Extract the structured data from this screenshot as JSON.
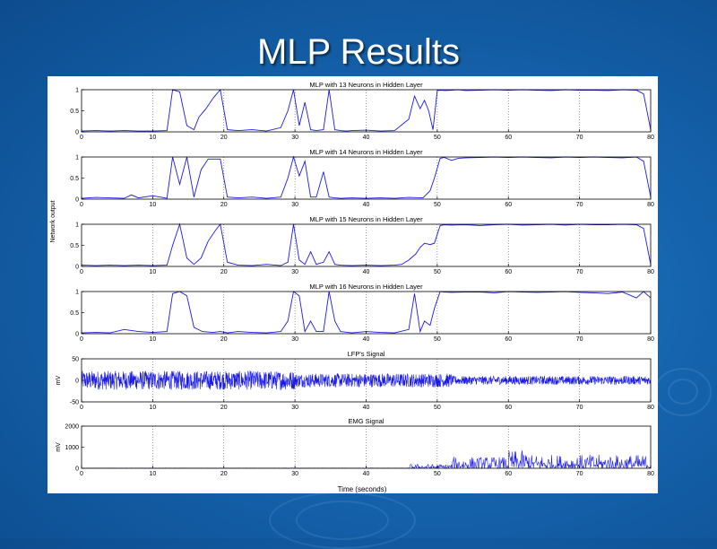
{
  "slide": {
    "title": "MLP Results"
  },
  "figure": {
    "xlabel": "Time (seconds)",
    "shared_ylabel": "Network output",
    "colors": {
      "trace": "#1a1ae6",
      "axis": "#000000",
      "grid": "#555555"
    }
  },
  "chart_data": [
    {
      "type": "line",
      "title": "MLP with 13 Neurons in Hidden Layer",
      "xlabel": "",
      "ylabel": "",
      "xlim": [
        0,
        80
      ],
      "ylim": [
        0,
        1
      ],
      "xticks": [
        0,
        10,
        20,
        30,
        40,
        50,
        60,
        70,
        80
      ],
      "yticks": [
        0,
        0.5,
        1
      ],
      "grid": "vertical dotted",
      "series": [
        {
          "x": [
            0,
            2,
            4,
            6,
            8,
            10,
            12,
            12.8,
            13.8,
            14.8,
            15.8,
            16.5,
            17.5,
            18.5,
            19.5,
            20.5,
            22,
            24,
            26,
            28,
            29,
            29.8,
            30.6,
            31.4,
            32.2,
            33,
            34,
            34.8,
            35.6,
            36.4,
            37.2,
            38,
            40,
            42,
            44,
            46,
            46.8,
            47.6,
            48.2,
            48.8,
            49.4,
            50,
            50.6,
            51.2,
            52,
            53,
            54,
            56,
            58,
            60,
            62,
            64,
            66,
            68,
            70,
            72,
            74,
            76,
            78,
            79,
            80
          ],
          "y": [
            0.02,
            0.03,
            0.02,
            0.03,
            0.02,
            0.02,
            0.03,
            1,
            0.95,
            0.15,
            0.05,
            0.35,
            0.55,
            0.8,
            1,
            0.05,
            0.03,
            0.05,
            0.02,
            0.1,
            0.5,
            1,
            0.15,
            0.7,
            0.05,
            0.03,
            0.05,
            1,
            0.05,
            0.03,
            0.02,
            0.03,
            0.04,
            0.02,
            0.03,
            0.3,
            0.85,
            0.55,
            0.75,
            0.5,
            0.05,
            0.98,
            0.99,
            0.98,
            0.99,
            1,
            0.98,
            0.99,
            1,
            0.99,
            1,
            0.99,
            0.98,
            1,
            0.99,
            0.99,
            0.98,
            1,
            0.99,
            0.9,
            0.05
          ]
        }
      ]
    },
    {
      "type": "line",
      "title": "MLP with 14 Neurons in Hidden Layer",
      "xlabel": "",
      "ylabel": "",
      "xlim": [
        0,
        80
      ],
      "ylim": [
        0,
        1
      ],
      "xticks": [
        0,
        10,
        20,
        30,
        40,
        50,
        60,
        70,
        80
      ],
      "yticks": [
        0,
        0.5,
        1
      ],
      "grid": "vertical dotted",
      "series": [
        {
          "x": [
            0,
            2,
            4,
            6,
            7,
            8,
            10,
            12,
            12.8,
            13.8,
            14.8,
            15.8,
            16.8,
            17.8,
            18.8,
            19.5,
            20.5,
            22,
            24,
            26,
            28,
            29,
            29.8,
            30.6,
            31.4,
            32.2,
            33,
            34,
            34.8,
            35.6,
            36.4,
            38,
            40,
            42,
            44,
            46,
            48,
            49,
            49.6,
            50.4,
            51,
            52,
            53,
            54,
            56,
            58,
            60,
            62,
            64,
            66,
            68,
            70,
            72,
            74,
            76,
            78,
            79,
            80
          ],
          "y": [
            0.02,
            0.04,
            0.03,
            0.02,
            0.1,
            0.03,
            0.08,
            0.02,
            1,
            0.35,
            1,
            0.05,
            0.7,
            0.95,
            0.95,
            0.95,
            0.05,
            0.03,
            0.05,
            0.02,
            0.05,
            0.5,
            1,
            0.55,
            0.9,
            0.05,
            0.05,
            0.65,
            0.05,
            0.03,
            0.02,
            0.03,
            0.02,
            0.03,
            0.02,
            0.04,
            0.03,
            0.2,
            0.5,
            0.97,
            0.99,
            0.92,
            0.97,
            0.98,
            0.99,
            1,
            0.99,
            1,
            0.99,
            0.98,
            1,
            0.99,
            1,
            0.99,
            0.98,
            1,
            0.9,
            0.05
          ]
        }
      ]
    },
    {
      "type": "line",
      "title": "MLP with 15 Neurons in Hidden Layer",
      "xlabel": "",
      "ylabel": "",
      "xlim": [
        0,
        80
      ],
      "ylim": [
        0,
        1
      ],
      "xticks": [
        0,
        10,
        20,
        30,
        40,
        50,
        60,
        70,
        80
      ],
      "yticks": [
        0,
        0.5,
        1
      ],
      "grid": "vertical dotted",
      "series": [
        {
          "x": [
            0,
            2,
            4,
            6,
            8,
            10,
            12,
            12.8,
            13.8,
            14.8,
            15.8,
            16.8,
            17.8,
            18.8,
            19.5,
            20.5,
            22,
            24,
            26,
            28,
            29,
            29.8,
            30.6,
            31.4,
            32.2,
            33,
            34,
            34.8,
            35.6,
            36.4,
            38,
            40,
            42,
            44,
            45,
            46,
            47,
            47.6,
            48.2,
            49,
            49.6,
            50.4,
            51,
            52,
            54,
            56,
            58,
            60,
            62,
            64,
            66,
            68,
            70,
            72,
            74,
            76,
            78,
            79,
            80
          ],
          "y": [
            0.03,
            0.02,
            0.03,
            0.02,
            0.03,
            0.02,
            0.03,
            0.5,
            1,
            0.2,
            0.05,
            0.2,
            0.6,
            0.85,
            1,
            0.1,
            0.03,
            0.02,
            0.05,
            0.02,
            0.1,
            1,
            0.15,
            0.05,
            0.35,
            0.05,
            0.1,
            0.35,
            0.05,
            0.03,
            0.02,
            0.03,
            0.02,
            0.03,
            0.05,
            0.15,
            0.3,
            0.45,
            0.55,
            0.52,
            0.55,
            0.97,
            0.99,
            0.98,
            0.99,
            0.97,
            0.99,
            1,
            0.98,
            0.99,
            1,
            0.98,
            1,
            0.99,
            0.99,
            1,
            0.99,
            0.9,
            0.05
          ]
        }
      ]
    },
    {
      "type": "line",
      "title": "MLP with 16 Neurons in Hidden Layer",
      "xlabel": "",
      "ylabel": "",
      "xlim": [
        0,
        80
      ],
      "ylim": [
        0,
        1
      ],
      "xticks": [
        0,
        10,
        20,
        30,
        40,
        50,
        60,
        70,
        80
      ],
      "yticks": [
        0,
        0.5,
        1
      ],
      "grid": "vertical dotted",
      "series": [
        {
          "x": [
            0,
            2,
            4,
            6,
            8,
            10,
            12,
            12.8,
            13.8,
            14.8,
            15.8,
            17,
            18.5,
            19.5,
            20.5,
            22,
            24,
            26,
            28,
            29,
            29.8,
            30.6,
            31.4,
            32.2,
            33,
            34,
            34.8,
            35.6,
            36.4,
            38,
            40,
            42,
            44,
            46,
            46.8,
            47.6,
            48.2,
            49,
            49.6,
            50.4,
            51,
            52,
            54,
            56,
            58,
            60,
            62,
            64,
            66,
            68,
            70,
            72,
            74,
            76,
            78,
            79,
            80
          ],
          "y": [
            0.02,
            0.03,
            0.02,
            0.1,
            0.05,
            0.03,
            0.05,
            0.95,
            1,
            0.9,
            0.15,
            0.05,
            0.03,
            0.05,
            0.02,
            0.05,
            0.03,
            0.02,
            0.05,
            0.3,
            1,
            0.9,
            0.05,
            0.3,
            0.05,
            0.05,
            1,
            0.3,
            0.05,
            0.02,
            0.05,
            0.03,
            0.02,
            0.1,
            0.95,
            0.05,
            0.3,
            0.2,
            0.6,
            1,
            0.99,
            0.98,
            0.99,
            0.99,
            0.97,
            1,
            0.99,
            0.98,
            0.99,
            1,
            0.98,
            0.97,
            0.95,
            0.99,
            0.85,
            1,
            0.85
          ]
        }
      ]
    },
    {
      "type": "line",
      "title": "LFP's Signal",
      "xlabel": "",
      "ylabel": "mV",
      "xlim": [
        0,
        80
      ],
      "ylim": [
        -50,
        50
      ],
      "xticks": [
        0,
        10,
        20,
        30,
        40,
        50,
        60,
        70,
        80
      ],
      "yticks": [
        -50,
        0,
        50
      ],
      "grid": "vertical dotted",
      "series": [
        {
          "kind": "dense-noise",
          "center": 0,
          "amplitude_segments": [
            {
              "x": [
                0,
                30
              ],
              "amp": 22
            },
            {
              "x": [
                30,
                52
              ],
              "amp": 16
            },
            {
              "x": [
                52,
                80
              ],
              "amp": 10
            }
          ]
        }
      ]
    },
    {
      "type": "line",
      "title": "EMG Signal",
      "xlabel": "Time (seconds)",
      "ylabel": "mV",
      "xlim": [
        0,
        80
      ],
      "ylim": [
        0,
        2000
      ],
      "xticks": [
        0,
        10,
        20,
        30,
        40,
        50,
        60,
        70,
        80
      ],
      "yticks": [
        0,
        1000,
        2000
      ],
      "grid": "vertical dotted",
      "series": [
        {
          "kind": "dense-spikes",
          "baseline": 0,
          "amplitude_segments": [
            {
              "x": [
                0,
                46
              ],
              "amp": 15
            },
            {
              "x": [
                46,
                52
              ],
              "amp": 200
            },
            {
              "x": [
                52,
                60
              ],
              "amp": 550
            },
            {
              "x": [
                60,
                63
              ],
              "amp": 850
            },
            {
              "x": [
                63,
                80
              ],
              "amp": 650
            }
          ]
        }
      ]
    }
  ]
}
